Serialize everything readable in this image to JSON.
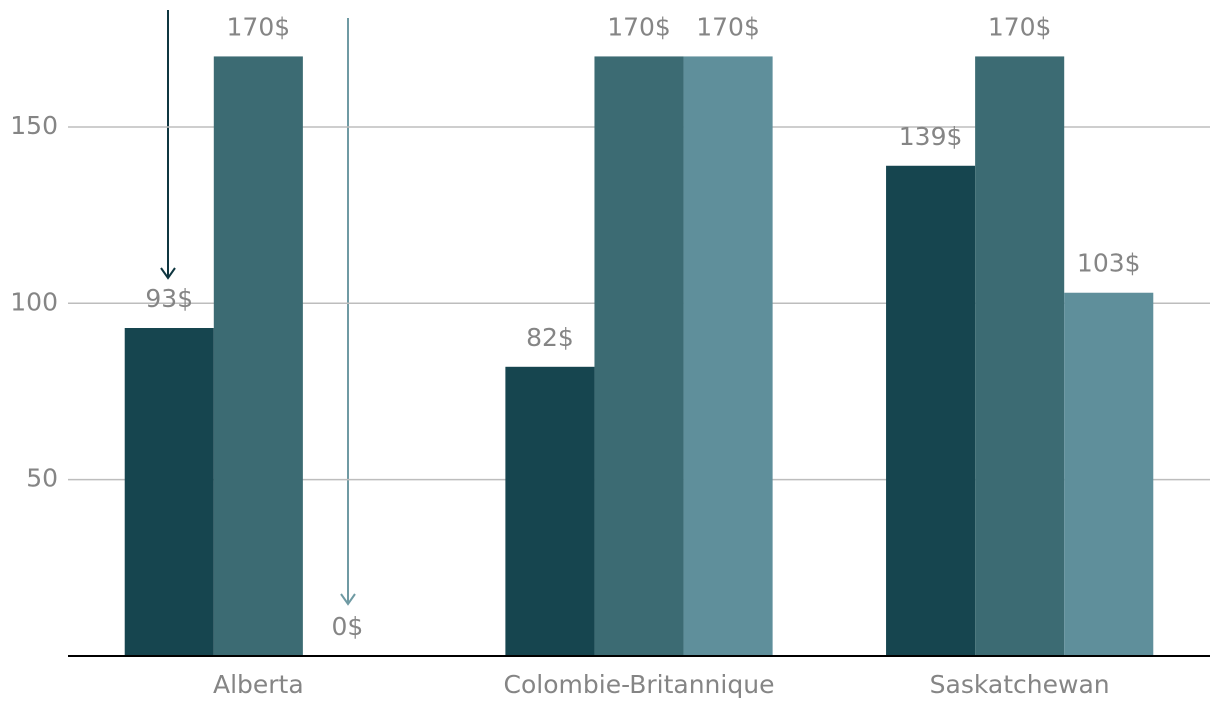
{
  "chart_data": {
    "type": "bar",
    "categories": [
      "Alberta",
      "Colombie-Britannique",
      "Saskatchewan"
    ],
    "series": [
      {
        "color": "#16454f",
        "values": [
          93,
          82,
          139
        ],
        "value_labels": [
          "93$",
          "82$",
          "139$"
        ]
      },
      {
        "color": "#3c6b73",
        "values": [
          170,
          170,
          170
        ],
        "value_labels": [
          "170$",
          "170$",
          "170$"
        ]
      },
      {
        "color": "#5f8f9b",
        "values": [
          0,
          170,
          103
        ],
        "value_labels": [
          "0$",
          "170$",
          "103$"
        ]
      }
    ],
    "ylim": [
      0,
      186
    ],
    "yticks": [
      50,
      100,
      150
    ],
    "grid": true
  }
}
